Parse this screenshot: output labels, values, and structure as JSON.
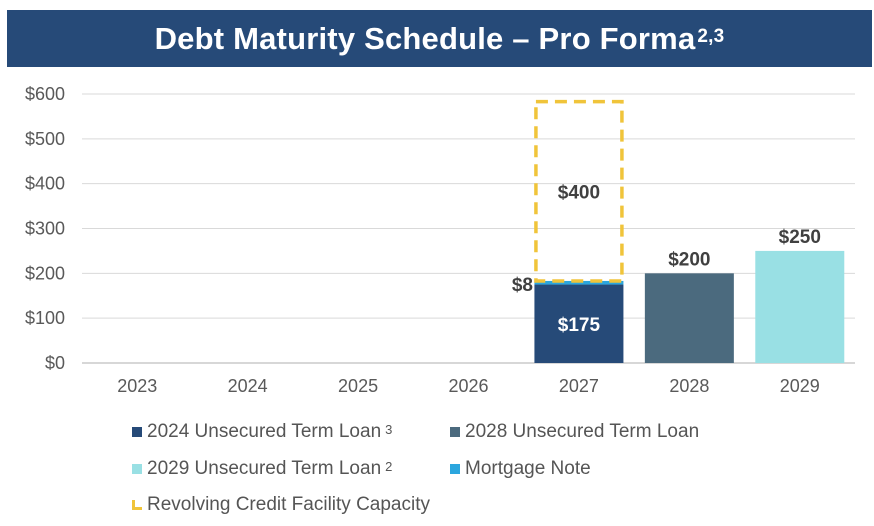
{
  "title": {
    "text": "Debt Maturity Schedule – Pro Forma",
    "superscript": "2,3"
  },
  "colors": {
    "title_bg": "#264a78",
    "term_loan_2024": "#264a78",
    "term_loan_2028": "#4b6a7e",
    "term_loan_2029": "#99e0e4",
    "mortgage_note": "#2ba6de",
    "revolver": "#f0c43a"
  },
  "chart_data": {
    "type": "bar",
    "stacked": true,
    "categories": [
      "2023",
      "2024",
      "2025",
      "2026",
      "2027",
      "2028",
      "2029"
    ],
    "series": [
      {
        "name": "2024 Unsecured Term Loan",
        "legend_sup": "3",
        "values": [
          0,
          0,
          0,
          0,
          175,
          0,
          0
        ],
        "color": "#264a78"
      },
      {
        "name": "Mortgage Note",
        "legend_sup": "",
        "values": [
          0,
          0,
          0,
          0,
          8,
          0,
          0
        ],
        "color": "#2ba6de"
      },
      {
        "name": "2028 Unsecured Term Loan",
        "legend_sup": "",
        "values": [
          0,
          0,
          0,
          0,
          0,
          200,
          0
        ],
        "color": "#4b6a7e"
      },
      {
        "name": "2029 Unsecured Term Loan",
        "legend_sup": "2",
        "values": [
          0,
          0,
          0,
          0,
          0,
          0,
          250
        ],
        "color": "#99e0e4"
      },
      {
        "name": "Revolving Credit Facility Capacity",
        "legend_sup": "",
        "values": [
          0,
          0,
          0,
          0,
          400,
          0,
          0
        ],
        "color": "#f0c43a",
        "style": "dashed-outline"
      }
    ],
    "data_labels": [
      "$175",
      "$8",
      "$400",
      "$200",
      "$250"
    ],
    "y_ticks": [
      "$0",
      "$100",
      "$200",
      "$300",
      "$400",
      "$500",
      "$600"
    ],
    "ylim": [
      0,
      600
    ],
    "grid": true,
    "legend_position": "bottom"
  },
  "legend": [
    {
      "label": "2024 Unsecured Term Loan",
      "sup": "3",
      "color": "#264a78"
    },
    {
      "label": "2028 Unsecured Term Loan",
      "sup": "",
      "color": "#4b6a7e"
    },
    {
      "label": "2029 Unsecured Term Loan",
      "sup": "2",
      "color": "#99e0e4"
    },
    {
      "label": "Mortgage Note",
      "sup": "",
      "color": "#2ba6de"
    },
    {
      "label": "Revolving Credit Facility Capacity",
      "sup": "",
      "color": "#f0c43a"
    }
  ]
}
